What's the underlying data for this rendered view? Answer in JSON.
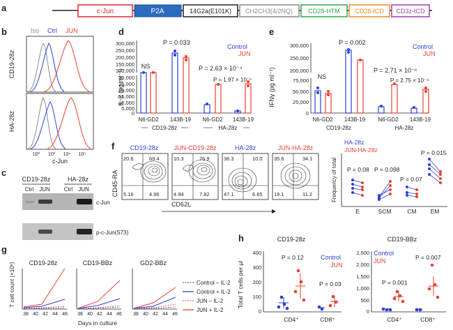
{
  "colors": {
    "control": "#2b3fd6",
    "jun": "#e8402e",
    "cjun": "#d8262b",
    "p2a": "#2d6bbf",
    "cd28htm": "#2aa84a",
    "cd28icd": "#f08a24",
    "cd3z": "#9a3fb5",
    "gray": "#8a8a8a"
  },
  "panel_letters": {
    "a": "a",
    "b": "b",
    "c": "c",
    "d": "d",
    "e": "e",
    "f": "f",
    "g": "g",
    "h": "h"
  },
  "panel_a": {
    "segments": [
      "c-Jun",
      "P2A",
      "14G2a(E101K)",
      "CH2CH3(4/2NQ)",
      "CD28-HTM",
      "CD28-ICD",
      "CD3z-ICD"
    ]
  },
  "panel_b": {
    "legend": [
      "Iso",
      "Ctrl",
      "JUN"
    ],
    "row_labels": [
      "CD19-28z",
      "HA-28z"
    ],
    "x_label": "c-Jun",
    "x_ticks": [
      "10⁰",
      "10³",
      "10⁴",
      "10⁵"
    ]
  },
  "panel_c": {
    "groups": [
      "CD19-28z",
      "HA-28z"
    ],
    "lanes": [
      "Ctrl",
      "JUN",
      "Ctrl",
      "JUN"
    ],
    "blot_labels": [
      "c-Jun",
      "p-c-Jun(S73)"
    ]
  },
  "panel_d": {
    "y_label": "IL-2 (pg ml⁻¹)",
    "y_ticks_top": [
      "300,000",
      "250,000",
      "200,000",
      "150,000",
      "100,000"
    ],
    "y_ticks_bottom": [
      "30,000",
      "25,000",
      "20,000",
      "15,000",
      "10,000",
      "5,000",
      "0"
    ],
    "categories": [
      "N6-GD2",
      "143B-19",
      "N6-GD2",
      "143B-19"
    ],
    "groups": [
      "CD19-28z",
      "HA-28z"
    ],
    "legend": [
      "Control",
      "JUN"
    ],
    "stats": [
      "NS",
      "P = 0.033",
      "P = 2.63 × 10⁻⁴",
      "P = 1.97 × 10⁻⁵"
    ]
  },
  "panel_e": {
    "y_label": "IFNγ (pg ml⁻¹)",
    "y_ticks_top": [
      "300,000",
      "250,000",
      "200,000"
    ],
    "y_ticks_bottom": [
      "75,000",
      "50,000",
      "25,000",
      "0"
    ],
    "categories": [
      "N6-GD2",
      "143B-19",
      "N6-GD2",
      "143B-19"
    ],
    "groups": [
      "CD19-28z",
      "HA-28z"
    ],
    "legend": [
      "Control",
      "JUN"
    ],
    "stats": [
      "NS",
      "P = 0.002",
      "P = 2.71 × 10⁻⁶",
      "P = 2.75 × 10⁻⁴"
    ]
  },
  "panel_f": {
    "titles": [
      "CD19-28z",
      "JUN-CD19-28z",
      "HA-28z",
      "JUN-HA-28z"
    ],
    "quadrants": [
      [
        "20.6",
        "69.4",
        "5.16",
        "4.96"
      ],
      [
        "10.3",
        "76.9",
        "4.94",
        "7.82"
      ],
      [
        "36.3",
        "10.0",
        "47.1",
        "6.65"
      ],
      [
        "35.6",
        "34.1",
        "19.1",
        "11.2"
      ]
    ],
    "y_label": "CD45-RA",
    "x_label": "CD62L",
    "legend": [
      "HA-28z",
      "JUN-HA-28z"
    ],
    "right_y_label": "Frequency of total",
    "right_categories": [
      "E",
      "SCM",
      "CM",
      "EM"
    ],
    "right_stats": [
      "P = 0.08",
      "P = 0.098",
      "P = 0.07",
      "P = 0.015"
    ]
  },
  "panel_g": {
    "y_label": "T cell count (×10⁶)",
    "x_label": "Days in culture",
    "titles": [
      "CD19-28z",
      "CD19-BBz",
      "GD2-BBz"
    ],
    "x_ticks": [
      "38",
      "40",
      "42",
      "44",
      "46"
    ],
    "legend": [
      "Control – IL-2",
      "Control + IL-2",
      "JUN – IL-2",
      "JUN + IL-2"
    ]
  },
  "panel_h": {
    "titles": [
      "CD19-28z",
      "CD19-BBz"
    ],
    "y_label": "Total T cells per µl",
    "left_y_ticks": [
      "400",
      "300",
      "200",
      "100",
      "0"
    ],
    "right_y_ticks": [
      "2,500",
      "2,000",
      "1,500",
      "1,000",
      "500",
      "0"
    ],
    "categories": [
      "CD4⁺",
      "CD8⁺"
    ],
    "legend": [
      "Control",
      "JUN"
    ],
    "left_stats": [
      "P = 0.12",
      "P = 0.03"
    ],
    "right_stats": [
      "P = 0.001",
      "P = 0.007"
    ]
  }
}
